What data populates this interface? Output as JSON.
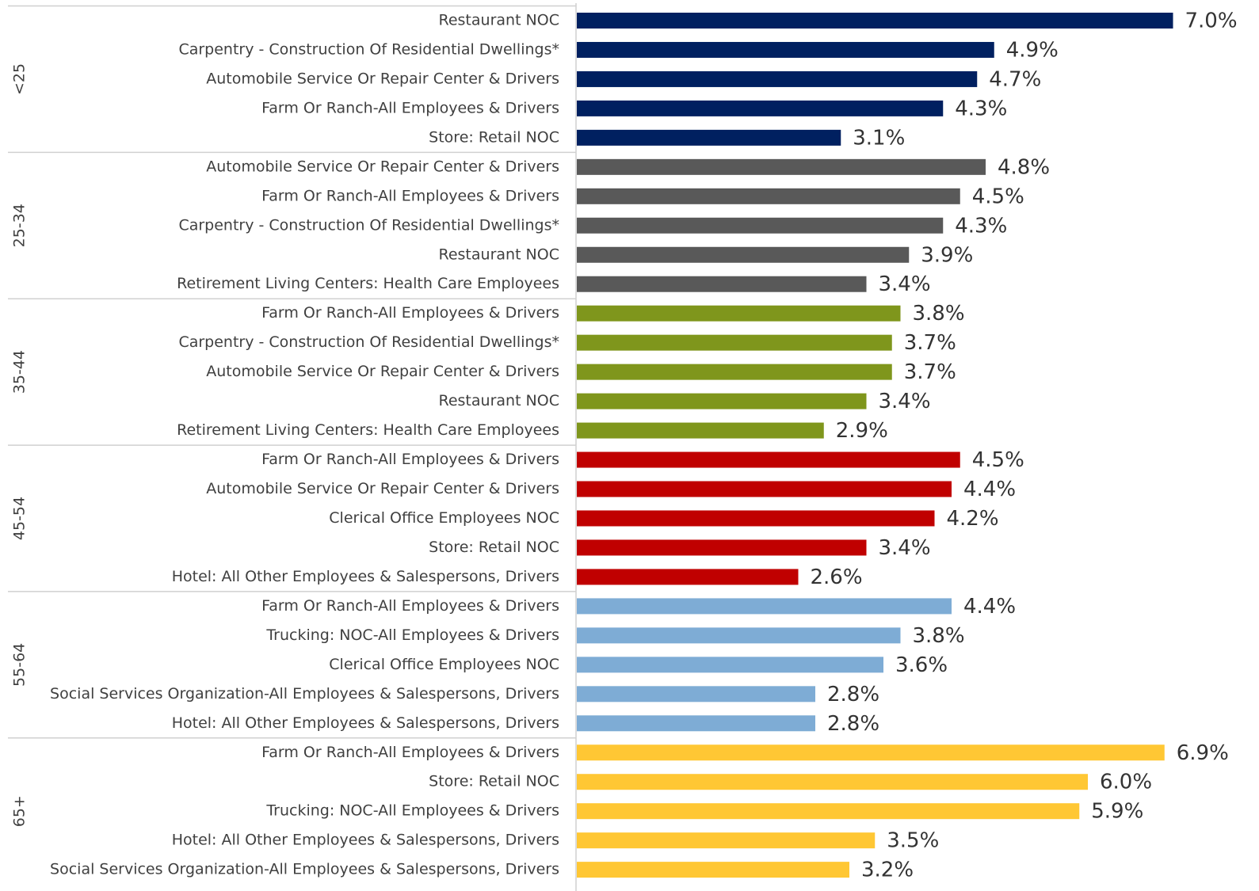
{
  "chart_data": {
    "type": "bar",
    "groups": [
      {
        "name": "<25",
        "color": "#002060",
        "categories": [
          "Restaurant NOC",
          "Carpentry - Construction Of Residential Dwellings*",
          "Automobile Service Or Repair Center & Drivers",
          "Farm Or Ranch-All Employees & Drivers",
          "Store: Retail NOC"
        ],
        "values": [
          7.0,
          4.9,
          4.7,
          4.3,
          3.1
        ],
        "value_labels": [
          "7.0%",
          "4.9%",
          "4.7%",
          "4.3%",
          "3.1%"
        ]
      },
      {
        "name": "25-34",
        "color": "#595959",
        "categories": [
          "Automobile Service Or Repair Center & Drivers",
          "Farm Or Ranch-All Employees & Drivers",
          "Carpentry - Construction Of Residential Dwellings*",
          "Restaurant NOC",
          "Retirement Living Centers: Health Care Employees"
        ],
        "values": [
          4.8,
          4.5,
          4.3,
          3.9,
          3.4
        ],
        "value_labels": [
          "4.8%",
          "4.5%",
          "4.3%",
          "3.9%",
          "3.4%"
        ]
      },
      {
        "name": "35-44",
        "color": "#7f961c",
        "categories": [
          "Farm Or Ranch-All Employees & Drivers",
          "Carpentry - Construction Of Residential Dwellings*",
          "Automobile Service Or Repair Center & Drivers",
          "Restaurant NOC",
          "Retirement Living Centers: Health Care Employees"
        ],
        "values": [
          3.8,
          3.7,
          3.7,
          3.4,
          2.9
        ],
        "value_labels": [
          "3.8%",
          "3.7%",
          "3.7%",
          "3.4%",
          "2.9%"
        ]
      },
      {
        "name": "45-54",
        "color": "#c00000",
        "categories": [
          "Farm Or Ranch-All Employees & Drivers",
          "Automobile Service Or Repair Center & Drivers",
          "Clerical Office Employees NOC",
          "Store: Retail NOC",
          "Hotel: All Other Employees & Salespersons, Drivers"
        ],
        "values": [
          4.5,
          4.4,
          4.2,
          3.4,
          2.6
        ],
        "value_labels": [
          "4.5%",
          "4.4%",
          "4.2%",
          "3.4%",
          "2.6%"
        ]
      },
      {
        "name": "55-64",
        "color": "#7eacd5",
        "categories": [
          "Farm Or Ranch-All Employees & Drivers",
          "Trucking: NOC-All Employees & Drivers",
          "Clerical Office Employees NOC",
          "Social Services Organization-All Employees & Salespersons, Drivers",
          "Hotel: All Other Employees & Salespersons, Drivers"
        ],
        "values": [
          4.4,
          3.8,
          3.6,
          2.8,
          2.8
        ],
        "value_labels": [
          "4.4%",
          "3.8%",
          "3.6%",
          "2.8%",
          "2.8%"
        ]
      },
      {
        "name": "65+",
        "color": "#ffc734",
        "categories": [
          "Farm Or Ranch-All Employees & Drivers",
          "Store: Retail NOC",
          "Trucking: NOC-All Employees & Drivers",
          "Hotel: All Other Employees & Salespersons, Drivers",
          "Social Services Organization-All Employees & Salespersons, Drivers"
        ],
        "values": [
          6.9,
          6.0,
          5.9,
          3.5,
          3.2
        ],
        "value_labels": [
          "6.9%",
          "6.0%",
          "5.9%",
          "3.5%",
          "3.2%"
        ]
      }
    ]
  }
}
